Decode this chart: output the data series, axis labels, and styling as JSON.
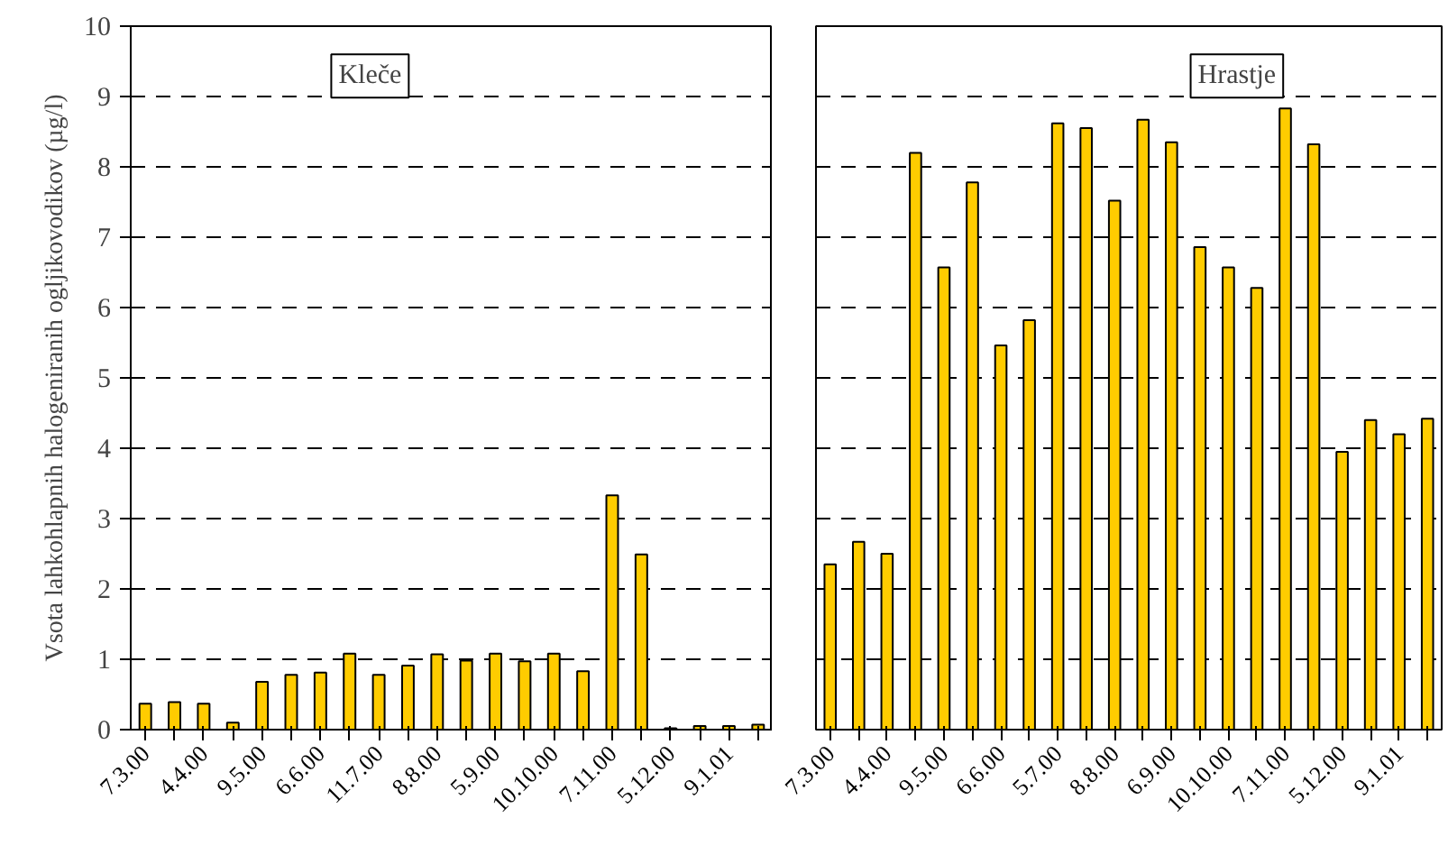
{
  "chart_data": [
    {
      "type": "bar",
      "annotations": [
        "Kleče"
      ],
      "ylabel": "Vsota lahkohlapnih halogeniranih ogljikovodikov (µg/l)",
      "categories": [
        "7.3.00",
        null,
        "4.4.00",
        null,
        "9.5.00",
        null,
        "6.6.00",
        null,
        "11.7.00",
        null,
        "8.8.00",
        null,
        "5.9.00",
        null,
        "10.10.00",
        null,
        "7.11.00",
        null,
        "5.12.00",
        null,
        "9.1.01",
        null
      ],
      "values": [
        0.37,
        0.39,
        0.37,
        0.1,
        0.68,
        0.78,
        0.81,
        1.08,
        0.78,
        0.91,
        1.07,
        0.98,
        1.08,
        0.97,
        1.08,
        0.83,
        3.33,
        2.49,
        0.02,
        0.05,
        0.05,
        0.07
      ],
      "color": "#ffcc00",
      "ylim": [
        0,
        10
      ],
      "yticks": [
        0,
        1,
        2,
        3,
        4,
        5,
        6,
        7,
        8,
        9,
        10
      ],
      "grid": "y"
    },
    {
      "type": "bar",
      "annotations": [
        "Hrastje"
      ],
      "tick_labels": "x",
      "categories": [
        "7.3.00",
        null,
        "4.4.00",
        null,
        "9.5.00",
        null,
        "6.6.00",
        null,
        "5.7.00",
        null,
        "8.8.00",
        null,
        "6.9.00",
        null,
        "10.10.00",
        null,
        "7.11.00",
        null,
        "5.12.00",
        null,
        "9.1.01",
        null
      ],
      "values": [
        2.35,
        2.67,
        2.5,
        8.2,
        6.57,
        7.78,
        5.46,
        5.82,
        8.62,
        8.55,
        7.52,
        8.67,
        8.35,
        6.86,
        6.57,
        6.28,
        8.83,
        8.32,
        3.95,
        4.4,
        4.2,
        4.42
      ],
      "color": "#ffcc00",
      "ylim": [
        0,
        10
      ],
      "yticks": [
        0,
        1,
        2,
        3,
        4,
        5,
        6,
        7,
        8,
        9,
        10
      ],
      "grid": "y"
    }
  ]
}
